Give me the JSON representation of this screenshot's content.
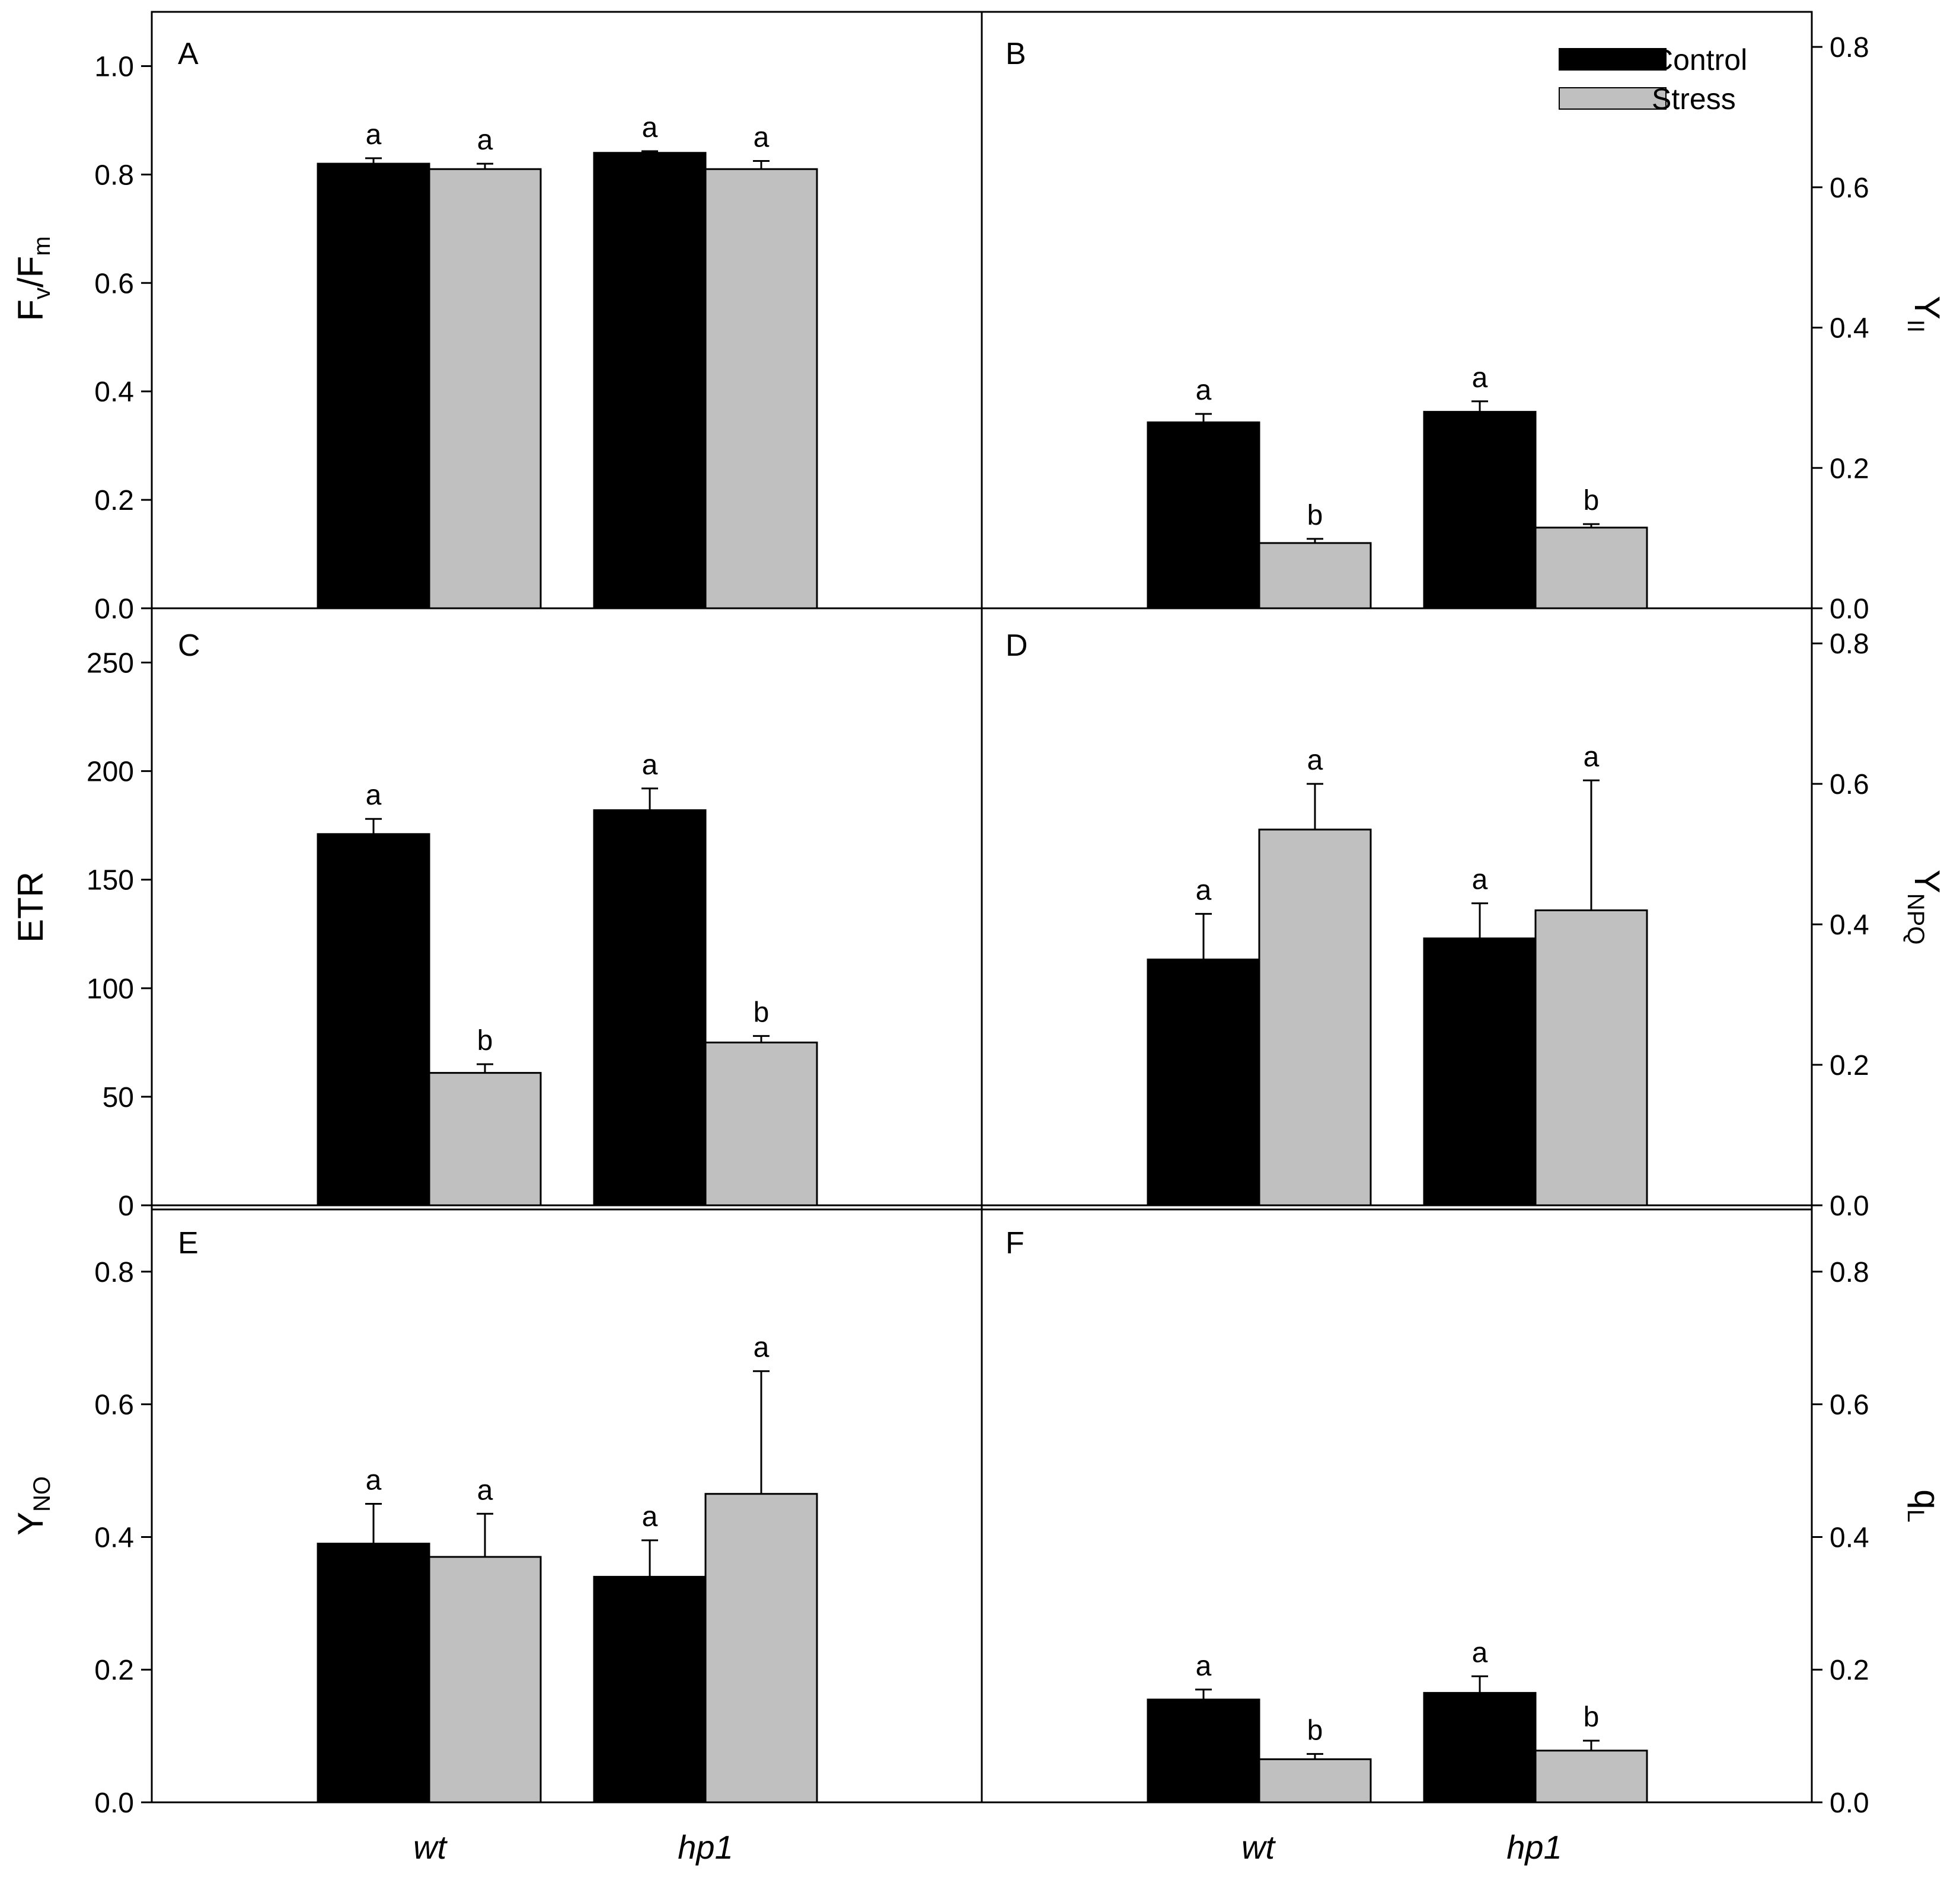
{
  "figure_title": "",
  "colors": {
    "control": "#000000",
    "stress": "#c0c0c0",
    "axis": "#000000"
  },
  "legend": {
    "placement": "top-right of panel B",
    "labels": [
      "Control",
      "Stress"
    ]
  },
  "x_labels": [
    "wt",
    "hp1"
  ],
  "chart_data": [
    {
      "panel": "A",
      "type": "bar",
      "side": "left",
      "ylabel_main": "F",
      "ylabel_sub1": "v",
      "ylabel_mid": "/F",
      "ylabel_sub2": "m",
      "ylim": [
        0,
        1.1
      ],
      "yticks": [
        "0.0",
        "0.2",
        "0.4",
        "0.6",
        "0.8",
        "1.0"
      ],
      "categories": [
        "wt",
        "hp1"
      ],
      "series": [
        {
          "name": "Control",
          "values": [
            0.82,
            0.84
          ],
          "errors": [
            0.01,
            0.003
          ],
          "letters": [
            "a",
            "a"
          ]
        },
        {
          "name": "Stress",
          "values": [
            0.81,
            0.81
          ],
          "errors": [
            0.01,
            0.015
          ],
          "letters": [
            "a",
            "a"
          ]
        }
      ]
    },
    {
      "panel": "B",
      "type": "bar",
      "side": "right",
      "ylabel_main": "Y",
      "ylabel_sub1": "II",
      "ylim": [
        0,
        0.85
      ],
      "yticks": [
        "0.0",
        "0.2",
        "0.4",
        "0.6",
        "0.8"
      ],
      "categories": [
        "wt",
        "hp1"
      ],
      "series": [
        {
          "name": "Control",
          "values": [
            0.265,
            0.28
          ],
          "errors": [
            0.012,
            0.015
          ],
          "letters": [
            "a",
            "a"
          ]
        },
        {
          "name": "Stress",
          "values": [
            0.093,
            0.115
          ],
          "errors": [
            0.006,
            0.005
          ],
          "letters": [
            "b",
            "b"
          ]
        }
      ]
    },
    {
      "panel": "C",
      "type": "bar",
      "side": "left",
      "ylabel_main": "ETR",
      "ylim": [
        0,
        275
      ],
      "yticks": [
        "0",
        "50",
        "100",
        "150",
        "200",
        "250"
      ],
      "categories": [
        "wt",
        "hp1"
      ],
      "series": [
        {
          "name": "Control",
          "values": [
            171,
            182
          ],
          "errors": [
            7,
            10
          ],
          "letters": [
            "a",
            "a"
          ]
        },
        {
          "name": "Stress",
          "values": [
            61,
            75
          ],
          "errors": [
            4,
            3
          ],
          "letters": [
            "b",
            "b"
          ]
        }
      ]
    },
    {
      "panel": "D",
      "type": "bar",
      "side": "right",
      "ylabel_main": "Y",
      "ylabel_sub1": "NPQ",
      "ylim": [
        0,
        0.85
      ],
      "yticks": [
        "0.0",
        "0.2",
        "0.4",
        "0.6",
        "0.8"
      ],
      "categories": [
        "wt",
        "hp1"
      ],
      "series": [
        {
          "name": "Control",
          "values": [
            0.35,
            0.38
          ],
          "errors": [
            0.065,
            0.05
          ],
          "letters": [
            "a",
            "a"
          ]
        },
        {
          "name": "Stress",
          "values": [
            0.535,
            0.42
          ],
          "errors": [
            0.065,
            0.185
          ],
          "letters": [
            "a",
            "a"
          ]
        }
      ]
    },
    {
      "panel": "E",
      "type": "bar",
      "side": "left",
      "ylabel_main": "Y",
      "ylabel_sub1": "NO",
      "ylim": [
        0,
        0.9
      ],
      "yticks": [
        "0.0",
        "0.2",
        "0.4",
        "0.6",
        "0.8"
      ],
      "categories": [
        "wt",
        "hp1"
      ],
      "series": [
        {
          "name": "Control",
          "values": [
            0.39,
            0.34
          ],
          "errors": [
            0.06,
            0.055
          ],
          "letters": [
            "a",
            "a"
          ]
        },
        {
          "name": "Stress",
          "values": [
            0.37,
            0.465
          ],
          "errors": [
            0.065,
            0.185
          ],
          "letters": [
            "a",
            "a"
          ]
        }
      ]
    },
    {
      "panel": "F",
      "type": "bar",
      "side": "right",
      "ylabel_main": "q",
      "ylabel_sub1": "L",
      "ylim": [
        0,
        0.9
      ],
      "yticks": [
        "0.0",
        "0.2",
        "0.4",
        "0.6",
        "0.8"
      ],
      "categories": [
        "wt",
        "hp1"
      ],
      "series": [
        {
          "name": "Control",
          "values": [
            0.155,
            0.165
          ],
          "errors": [
            0.015,
            0.025
          ],
          "letters": [
            "a",
            "a"
          ]
        },
        {
          "name": "Stress",
          "values": [
            0.065,
            0.078
          ],
          "errors": [
            0.008,
            0.015
          ],
          "letters": [
            "b",
            "b"
          ]
        }
      ]
    }
  ]
}
